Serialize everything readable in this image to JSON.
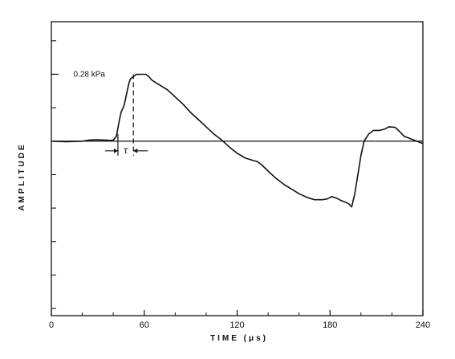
{
  "chart_data": {
    "type": "line",
    "xlabel": "TIME (μs)",
    "ylabel": "AMPLITUDE",
    "xlim": [
      0,
      240
    ],
    "ylim": [
      -0.73,
      0.5
    ],
    "x_ticks": [
      0,
      60,
      120,
      180,
      240
    ],
    "x_tick_labels": [
      "0",
      "60",
      "120",
      "180",
      "240"
    ],
    "grid": false,
    "annotations": {
      "peak_label": "0.28 kPa",
      "peak_level": 0.28,
      "rise_label": "τ",
      "rise_start_us": 43,
      "rise_end_us": 53
    },
    "series": [
      {
        "x": [
          0,
          10,
          20,
          25,
          30,
          33,
          36,
          38,
          40,
          42,
          44,
          45,
          47,
          49,
          50,
          51,
          53,
          55,
          58,
          61,
          63,
          65,
          70,
          75,
          80,
          85,
          90,
          95,
          100,
          105,
          110,
          115,
          120,
          125,
          130,
          133,
          136,
          140,
          145,
          150,
          155,
          160,
          165,
          170,
          175,
          178,
          181,
          184,
          187,
          190,
          192,
          194,
          196,
          198,
          200,
          202,
          205,
          208,
          212,
          215,
          218,
          222,
          225,
          228,
          232,
          236,
          240
        ],
        "y": [
          0,
          -0.002,
          0,
          0.005,
          0.006,
          0.005,
          0.004,
          0.003,
          0.005,
          0.02,
          0.09,
          0.12,
          0.15,
          0.21,
          0.24,
          0.26,
          0.27,
          0.28,
          0.28,
          0.28,
          0.27,
          0.255,
          0.235,
          0.215,
          0.185,
          0.155,
          0.12,
          0.09,
          0.06,
          0.03,
          0.005,
          -0.025,
          -0.05,
          -0.07,
          -0.08,
          -0.085,
          -0.1,
          -0.125,
          -0.155,
          -0.18,
          -0.2,
          -0.22,
          -0.235,
          -0.245,
          -0.245,
          -0.242,
          -0.232,
          -0.238,
          -0.248,
          -0.255,
          -0.262,
          -0.275,
          -0.22,
          -0.14,
          -0.06,
          0.0,
          0.03,
          0.045,
          0.045,
          0.05,
          0.06,
          0.058,
          0.04,
          0.02,
          0.01,
          0.0,
          -0.01
        ]
      }
    ]
  }
}
